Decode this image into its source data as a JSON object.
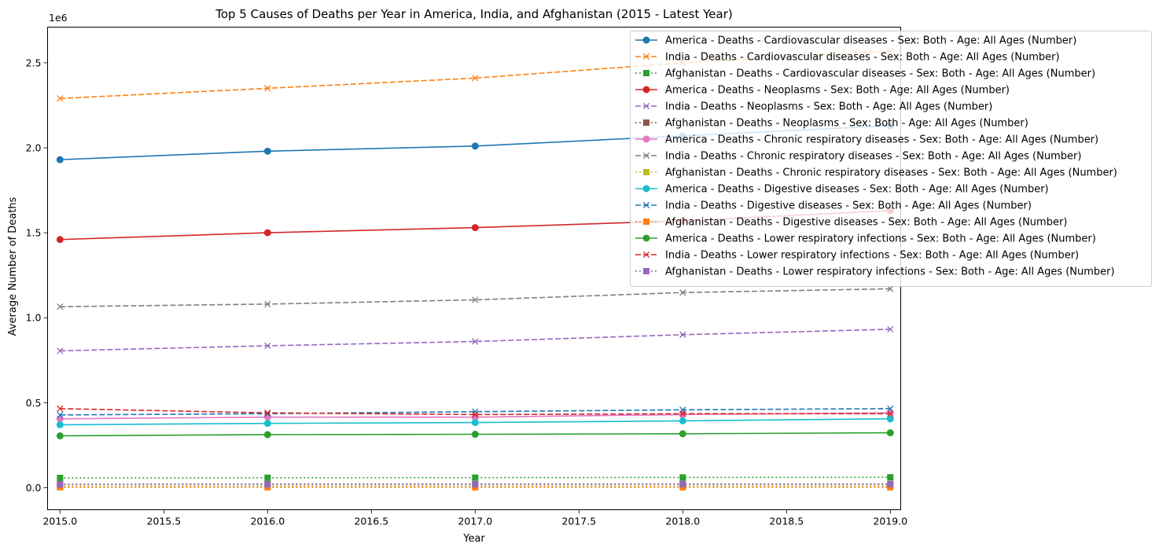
{
  "chart_data": {
    "type": "line",
    "title": "Top 5 Causes of Deaths per Year in America, India, and Afghanistan (2015 - Latest Year)",
    "xlabel": "Year",
    "ylabel": "Average Number of Deaths",
    "y_offset_label": "1e6",
    "xlim": [
      2014.94,
      2019.05
    ],
    "ylim": [
      -130000,
      2710000
    ],
    "xticks": [
      2015.0,
      2015.5,
      2016.0,
      2016.5,
      2017.0,
      2017.5,
      2018.0,
      2018.5,
      2019.0
    ],
    "xtick_labels": [
      "2015.0",
      "2015.5",
      "2016.0",
      "2016.5",
      "2017.0",
      "2017.5",
      "2018.0",
      "2018.5",
      "2019.0"
    ],
    "yticks": [
      0,
      500000,
      1000000,
      1500000,
      2000000,
      2500000
    ],
    "ytick_labels": [
      "0.0",
      "0.5",
      "1.0",
      "1.5",
      "2.0",
      "2.5"
    ],
    "grid": false,
    "legend_position": "top-right",
    "x": [
      2015,
      2016,
      2017,
      2018,
      2019
    ],
    "series": [
      {
        "name": "America - Deaths - Cardiovascular diseases - Sex: Both - Age: All Ages (Number)",
        "values": [
          1930000,
          1980000,
          2010000,
          2070000,
          2130000
        ],
        "color": "#1f77b4",
        "dash": "solid",
        "marker": "circle"
      },
      {
        "name": "India - Deaths - Cardiovascular diseases - Sex: Both - Age: All Ages (Number)",
        "values": [
          2290000,
          2350000,
          2410000,
          2500000,
          2570000
        ],
        "color": "#ff7f0e",
        "dash": "dashed",
        "marker": "x"
      },
      {
        "name": "Afghanistan - Deaths - Cardiovascular diseases - Sex: Both - Age: All Ages (Number)",
        "values": [
          57000,
          58000,
          59000,
          60000,
          61000
        ],
        "color": "#2ca02c",
        "dash": "dotted",
        "marker": "square"
      },
      {
        "name": "America - Deaths - Neoplasms - Sex: Both - Age: All Ages (Number)",
        "values": [
          1460000,
          1500000,
          1530000,
          1570000,
          1630000
        ],
        "color": "#d62728",
        "dash": "solid",
        "marker": "circle"
      },
      {
        "name": "India - Deaths - Neoplasms - Sex: Both - Age: All Ages (Number)",
        "values": [
          805000,
          835000,
          860000,
          900000,
          932000
        ],
        "color": "#9467bd",
        "dash": "dashed",
        "marker": "x"
      },
      {
        "name": "Afghanistan - Deaths - Neoplasms - Sex: Both - Age: All Ages (Number)",
        "values": [
          20000,
          21000,
          21000,
          22000,
          22000
        ],
        "color": "#8c564b",
        "dash": "dotted",
        "marker": "square"
      },
      {
        "name": "America - Deaths - Chronic respiratory diseases - Sex: Both - Age: All Ages (Number)",
        "values": [
          405000,
          415000,
          415000,
          430000,
          440000
        ],
        "color": "#e377c2",
        "dash": "solid",
        "marker": "circle"
      },
      {
        "name": "India - Deaths - Chronic respiratory diseases - Sex: Both - Age: All Ages (Number)",
        "values": [
          1065000,
          1080000,
          1105000,
          1148000,
          1170000
        ],
        "color": "#7f7f7f",
        "dash": "dashed",
        "marker": "x"
      },
      {
        "name": "Afghanistan - Deaths - Chronic respiratory diseases - Sex: Both - Age: All Ages (Number)",
        "values": [
          9000,
          9000,
          9000,
          10000,
          10000
        ],
        "color": "#bcbd22",
        "dash": "dotted",
        "marker": "square"
      },
      {
        "name": "America - Deaths - Digestive diseases - Sex: Both - Age: All Ages (Number)",
        "values": [
          370000,
          378000,
          383000,
          393000,
          405000
        ],
        "color": "#17becf",
        "dash": "solid",
        "marker": "circle"
      },
      {
        "name": "India - Deaths - Digestive diseases - Sex: Both - Age: All Ages (Number)",
        "values": [
          428000,
          435000,
          447000,
          458000,
          465000
        ],
        "color": "#1f77b4",
        "dash": "dashed",
        "marker": "x"
      },
      {
        "name": "Afghanistan - Deaths - Digestive diseases - Sex: Both - Age: All Ages (Number)",
        "values": [
          2000,
          2000,
          2000,
          2000,
          2000
        ],
        "color": "#ff7f0e",
        "dash": "dotted",
        "marker": "square"
      },
      {
        "name": "America - Deaths - Lower respiratory infections - Sex: Both - Age: All Ages (Number)",
        "values": [
          305000,
          312000,
          314000,
          317000,
          323000
        ],
        "color": "#2ca02c",
        "dash": "solid",
        "marker": "circle"
      },
      {
        "name": "India - Deaths - Lower respiratory infections - Sex: Both - Age: All Ages (Number)",
        "values": [
          465000,
          440000,
          430000,
          435000,
          435000
        ],
        "color": "#d62728",
        "dash": "dashed",
        "marker": "x"
      },
      {
        "name": "Afghanistan - Deaths - Lower respiratory infections - Sex: Both - Age: All Ages (Number)",
        "values": [
          19000,
          19000,
          19000,
          20000,
          20000
        ],
        "color": "#9467bd",
        "dash": "dotted",
        "marker": "square"
      }
    ]
  }
}
